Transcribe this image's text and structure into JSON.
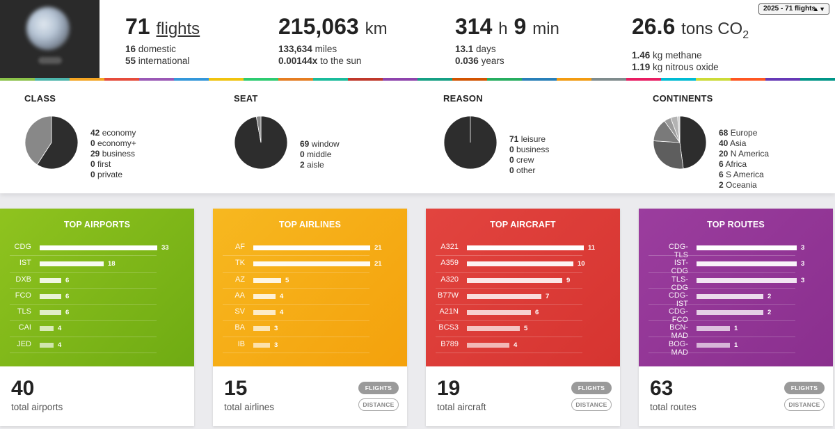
{
  "header": {
    "flights": {
      "count": "71",
      "label": "flights",
      "domestic_count": "16",
      "domestic_label": "domestic",
      "intl_count": "55",
      "intl_label": "international"
    },
    "distance": {
      "value": "215,063",
      "unit": "km",
      "miles_value": "133,634",
      "miles_label": "miles",
      "sun_value": "0.00144x",
      "sun_label": "to the sun"
    },
    "time": {
      "hours": "314",
      "hours_unit": "h",
      "minutes": "9",
      "minutes_unit": "min",
      "days_value": "13.1",
      "days_label": "days",
      "years_value": "0.036",
      "years_label": "years"
    },
    "co2": {
      "value": "26.6",
      "unit": "tons CO",
      "unit_sub": "2",
      "methane_value": "1.46",
      "methane_label": "kg methane",
      "nitrous_value": "1.19",
      "nitrous_label": "kg nitrous oxide"
    },
    "year_select": "2025 - 71 flights",
    "stripe_colors": [
      "#8bc34a",
      "#4db6ac",
      "#f5a623",
      "#e74c3c",
      "#9b59b6",
      "#3498db",
      "#f1c40f",
      "#2ecc71",
      "#e67e22",
      "#1abc9c",
      "#c0392b",
      "#8e44ad",
      "#16a085",
      "#d35400",
      "#27ae60",
      "#2980b9",
      "#f39c12",
      "#7f8c8d",
      "#e91e63",
      "#00bcd4",
      "#cddc39",
      "#ff5722",
      "#673ab7",
      "#009688"
    ]
  },
  "breakdown": {
    "class": {
      "title": "CLASS",
      "slices": [
        42,
        29
      ],
      "colors": [
        "#2d2d2d",
        "#888888"
      ],
      "items": [
        {
          "n": "42",
          "t": "economy"
        },
        {
          "n": "0",
          "t": "economy+"
        },
        {
          "n": "29",
          "t": "business"
        },
        {
          "n": "0",
          "t": "first"
        },
        {
          "n": "0",
          "t": "private"
        }
      ]
    },
    "seat": {
      "title": "SEAT",
      "slices": [
        69,
        2
      ],
      "colors": [
        "#2d2d2d",
        "#888888"
      ],
      "items": [
        {
          "n": "69",
          "t": "window"
        },
        {
          "n": "0",
          "t": "middle"
        },
        {
          "n": "2",
          "t": "aisle"
        }
      ]
    },
    "reason": {
      "title": "REASON",
      "slices": [
        71
      ],
      "colors": [
        "#2d2d2d"
      ],
      "items": [
        {
          "n": "71",
          "t": "leisure"
        },
        {
          "n": "0",
          "t": "business"
        },
        {
          "n": "0",
          "t": "crew"
        },
        {
          "n": "0",
          "t": "other"
        }
      ]
    },
    "continents": {
      "title": "CONTINENTS",
      "slices": [
        68,
        40,
        20,
        6,
        6,
        2
      ],
      "colors": [
        "#2d2d2d",
        "#5e5e5e",
        "#7a7a7a",
        "#9a9a9a",
        "#b3b3b3",
        "#cccccc"
      ],
      "items": [
        {
          "n": "68",
          "t": "Europe"
        },
        {
          "n": "40",
          "t": "Asia"
        },
        {
          "n": "20",
          "t": "N America"
        },
        {
          "n": "6",
          "t": "Africa"
        },
        {
          "n": "6",
          "t": "S America"
        },
        {
          "n": "2",
          "t": "Oceania"
        }
      ]
    }
  },
  "cards": [
    {
      "title": "TOP AIRPORTS",
      "gradient": [
        "#8fc31f",
        "#6fab13"
      ],
      "max": 33,
      "rows": [
        {
          "label": "CDG",
          "value": 33
        },
        {
          "label": "IST",
          "value": 18
        },
        {
          "label": "DXB",
          "value": 6
        },
        {
          "label": "FCO",
          "value": 6
        },
        {
          "label": "TLS",
          "value": 6
        },
        {
          "label": "CAI",
          "value": 4
        },
        {
          "label": "JED",
          "value": 4
        }
      ],
      "total": "40",
      "total_label": "total airports",
      "show_pills": false
    },
    {
      "title": "TOP AIRLINES",
      "gradient": [
        "#f7b820",
        "#f4a10c"
      ],
      "max": 21,
      "rows": [
        {
          "label": "AF",
          "value": 21
        },
        {
          "label": "TK",
          "value": 21
        },
        {
          "label": "AZ",
          "value": 5
        },
        {
          "label": "AA",
          "value": 4
        },
        {
          "label": "SV",
          "value": 4
        },
        {
          "label": "BA",
          "value": 3
        },
        {
          "label": "IB",
          "value": 3
        }
      ],
      "total": "15",
      "total_label": "total airlines",
      "show_pills": true,
      "pill_on": "FLIGHTS",
      "pill_off": "DISTANCE"
    },
    {
      "title": "TOP AIRCRAFT",
      "gradient": [
        "#e2443f",
        "#d63430"
      ],
      "max": 11,
      "rows": [
        {
          "label": "A321",
          "value": 11
        },
        {
          "label": "A359",
          "value": 10
        },
        {
          "label": "A320",
          "value": 9
        },
        {
          "label": "B77W",
          "value": 7
        },
        {
          "label": "A21N",
          "value": 6
        },
        {
          "label": "BCS3",
          "value": 5
        },
        {
          "label": "B789",
          "value": 4
        }
      ],
      "total": "19",
      "total_label": "total aircraft",
      "show_pills": true,
      "pill_on": "FLIGHTS",
      "pill_off": "DISTANCE"
    },
    {
      "title": "TOP ROUTES",
      "gradient": [
        "#9b3d9e",
        "#8a2f8e"
      ],
      "max": 3,
      "rows": [
        {
          "label": "CDG-TLS",
          "value": 3
        },
        {
          "label": "IST-CDG",
          "value": 3
        },
        {
          "label": "TLS-CDG",
          "value": 3
        },
        {
          "label": "CDG-IST",
          "value": 2
        },
        {
          "label": "CDG-FCO",
          "value": 2
        },
        {
          "label": "BCN-MAD",
          "value": 1
        },
        {
          "label": "BOG-MAD",
          "value": 1
        }
      ],
      "total": "63",
      "total_label": "total routes",
      "show_pills": true,
      "pill_on": "FLIGHTS",
      "pill_off": "DISTANCE"
    }
  ]
}
